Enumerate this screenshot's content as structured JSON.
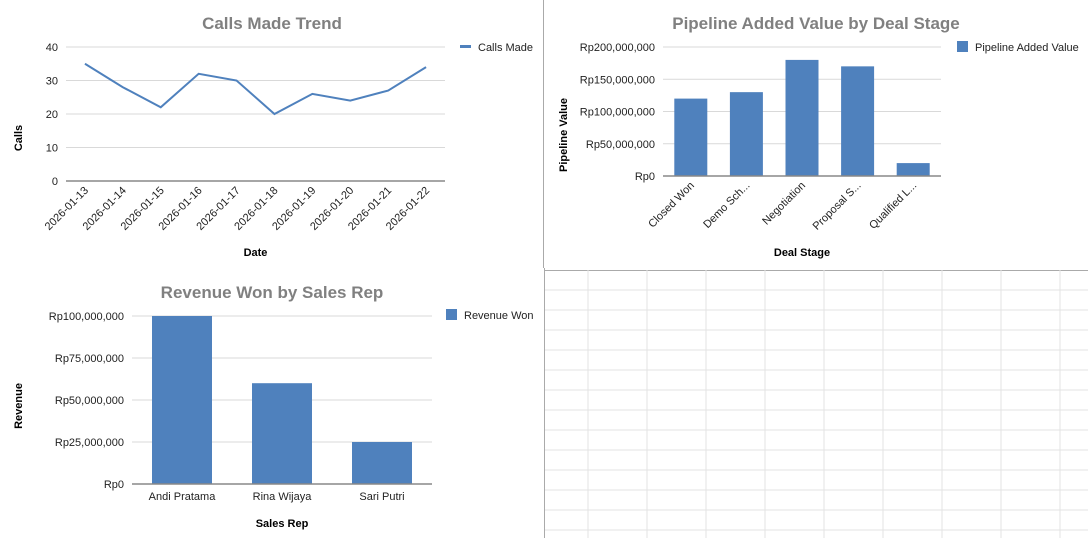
{
  "chart_data": [
    {
      "type": "line",
      "title": "Calls Made Trend",
      "xlabel": "Date",
      "ylabel": "Calls",
      "ylim": [
        0,
        40
      ],
      "yticks": [
        "0",
        "10",
        "20",
        "30",
        "40"
      ],
      "grid": true,
      "legend": "right",
      "color": "#4f81bd",
      "categories": [
        "2026-01-13",
        "2026-01-14",
        "2026-01-15",
        "2026-01-16",
        "2026-01-17",
        "2026-01-18",
        "2026-01-19",
        "2026-01-20",
        "2026-01-21",
        "2026-01-22"
      ],
      "series": [
        {
          "name": "Calls Made",
          "values": [
            35,
            28,
            22,
            32,
            30,
            20,
            26,
            24,
            27,
            34
          ]
        }
      ]
    },
    {
      "type": "bar",
      "title": "Pipeline Added Value by Deal Stage",
      "xlabel": "Deal Stage",
      "ylabel": "Pipeline Value",
      "ylim": [
        0,
        200000000
      ],
      "yticks": [
        "Rp0",
        "Rp50,000,000",
        "Rp100,000,000",
        "Rp150,000,000",
        "Rp200,000,000"
      ],
      "grid": true,
      "legend": "right",
      "color": "#4f81bd",
      "categories": [
        "Closed Won",
        "Demo Sch...",
        "Negotiation",
        "Proposal S...",
        "Qualified L..."
      ],
      "series": [
        {
          "name": "Pipeline Added Value",
          "values": [
            120000000,
            130000000,
            180000000,
            170000000,
            20000000
          ]
        }
      ]
    },
    {
      "type": "bar",
      "title": "Revenue Won by Sales Rep",
      "xlabel": "Sales Rep",
      "ylabel": "Revenue",
      "ylim": [
        0,
        100000000
      ],
      "yticks": [
        "Rp0",
        "Rp25,000,000",
        "Rp50,000,000",
        "Rp75,000,000",
        "Rp100,000,000"
      ],
      "grid": true,
      "legend": "right",
      "color": "#4f81bd",
      "categories": [
        "Andi Pratama",
        "Rina Wijaya",
        "Sari Putri"
      ],
      "series": [
        {
          "name": "Revenue Won",
          "values": [
            100000000,
            60000000,
            25000000
          ]
        }
      ]
    }
  ]
}
